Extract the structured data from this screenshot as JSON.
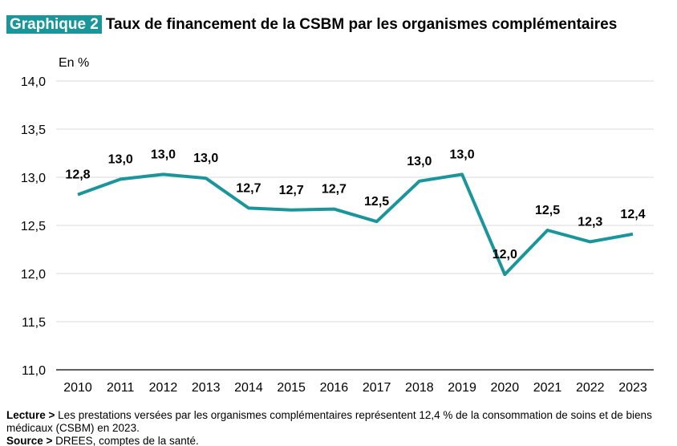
{
  "header": {
    "badge": "Graphique 2",
    "title": "Taux de financement de la CSBM par les organismes complémentaires"
  },
  "notes": {
    "lecture_label": "Lecture >",
    "lecture_text": "Les prestations versées par les organismes complémentaires représentent 12,4 % de la consommation de soins et de biens médicaux (CSBM) en 2023.",
    "source_label": "Source >",
    "source_text": "DREES, comptes de la santé."
  },
  "chart_data": {
    "type": "line",
    "title": "Taux de financement de la CSBM par les organismes complémentaires",
    "ylabel": "En %",
    "xlabel": "",
    "ylim": [
      11.0,
      14.0
    ],
    "yticks": [
      "11,0",
      "11,5",
      "12,0",
      "12,5",
      "13,0",
      "13,5",
      "14,0"
    ],
    "grid": true,
    "color": "#1a969b",
    "categories": [
      "2010",
      "2011",
      "2012",
      "2013",
      "2014",
      "2015",
      "2016",
      "2017",
      "2018",
      "2019",
      "2020",
      "2021",
      "2022",
      "2023"
    ],
    "values": [
      12.82,
      12.98,
      13.03,
      12.99,
      12.68,
      12.66,
      12.67,
      12.54,
      12.96,
      13.03,
      11.99,
      12.45,
      12.33,
      12.41
    ],
    "labels": [
      "12,8",
      "13,0",
      "13,0",
      "13,0",
      "12,7",
      "12,7",
      "12,7",
      "12,5",
      "13,0",
      "13,0",
      "12,0",
      "12,5",
      "12,3",
      "12,4"
    ]
  }
}
